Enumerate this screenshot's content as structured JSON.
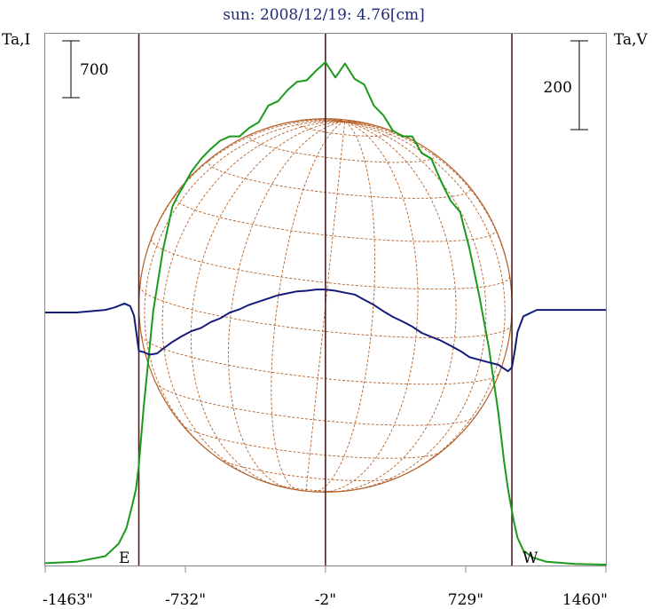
{
  "chart_data": {
    "type": "line",
    "title": "sun: 2008/12/19: 4.76[cm]",
    "y_left_label": "Ta,I",
    "y_right_label": "Ta,V",
    "scale_bar_left": "700",
    "scale_bar_right": "200",
    "limb_labels": [
      "E",
      "W"
    ],
    "x_tick_labels": [
      "-1463\"",
      "-732\"",
      "-2\"",
      "729\"",
      "1460\""
    ],
    "x_ticks": [
      -1463,
      -732,
      -2,
      729,
      1460
    ],
    "xlim": [
      -1463,
      1460
    ],
    "limb_lines": [
      -975,
      -2,
      970
    ],
    "solar_radius": 970,
    "series": [
      {
        "name": "I",
        "color": "#1a9a1a",
        "x": [
          -1463,
          -1300,
          -1150,
          -1080,
          -1040,
          -1010,
          -990,
          -975,
          -950,
          -900,
          -850,
          -800,
          -770,
          -740,
          -700,
          -650,
          -600,
          -550,
          -500,
          -450,
          -400,
          -350,
          -300,
          -250,
          -200,
          -150,
          -100,
          -50,
          -2,
          50,
          100,
          150,
          200,
          250,
          300,
          350,
          400,
          450,
          500,
          550,
          600,
          650,
          700,
          750,
          800,
          850,
          900,
          930,
          950,
          965,
          980,
          1000,
          1030,
          1080,
          1150,
          1300,
          1460
        ],
        "y": [
          -570,
          -560,
          -520,
          -430,
          -320,
          -160,
          -40,
          130,
          540,
          1230,
          1660,
          1980,
          2060,
          2130,
          2230,
          2320,
          2390,
          2450,
          2480,
          2480,
          2540,
          2580,
          2700,
          2730,
          2810,
          2870,
          2880,
          2950,
          3010,
          2900,
          3000,
          2890,
          2850,
          2700,
          2630,
          2520,
          2480,
          2480,
          2360,
          2320,
          2160,
          2020,
          1940,
          1670,
          1340,
          970,
          500,
          150,
          -40,
          -160,
          -270,
          -390,
          -480,
          -530,
          -560,
          -575,
          -580
        ]
      },
      {
        "name": "V",
        "color": "#141b7a",
        "x": [
          -1463,
          -1300,
          -1150,
          -1100,
          -1050,
          -1020,
          -1000,
          -975,
          -950,
          -920,
          -880,
          -850,
          -800,
          -750,
          -700,
          -650,
          -600,
          -550,
          -500,
          -450,
          -400,
          -350,
          -300,
          -250,
          -200,
          -150,
          -100,
          -50,
          -2,
          50,
          100,
          150,
          200,
          250,
          300,
          350,
          400,
          450,
          500,
          550,
          600,
          650,
          700,
          750,
          800,
          850,
          900,
          950,
          970,
          985,
          1000,
          1030,
          1100,
          1200,
          1300,
          1460
        ],
        "y": [
          0,
          0,
          4,
          8,
          14,
          10,
          -5,
          -60,
          -62,
          -66,
          -64,
          -57,
          -46,
          -37,
          -29,
          -24,
          -15,
          -9,
          0,
          5,
          12,
          17,
          22,
          27,
          30,
          33,
          34,
          36,
          36,
          34,
          31,
          28,
          20,
          12,
          2,
          -7,
          -14,
          -22,
          -32,
          -38,
          -44,
          -52,
          -60,
          -70,
          -74,
          -78,
          -82,
          -92,
          -86,
          -60,
          -30,
          -6,
          4,
          4,
          4,
          4
        ]
      }
    ]
  }
}
